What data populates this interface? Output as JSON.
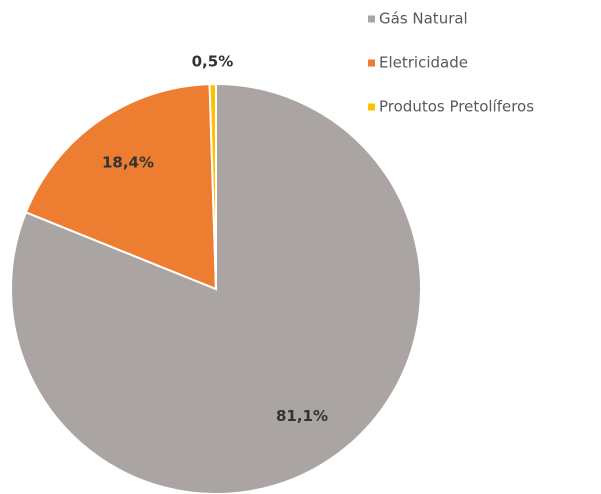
{
  "chart_data": {
    "type": "pie",
    "categories": [
      "Gás Natural",
      "Eletricidade",
      "Produtos Pretolíferos"
    ],
    "values": [
      81.1,
      18.4,
      0.5
    ],
    "value_labels": [
      "81,1%",
      "18,4%",
      "0,5%"
    ],
    "colors": [
      "#aaa5a3",
      "#ed7d31",
      "#ffc000"
    ],
    "legend": "top-right"
  }
}
